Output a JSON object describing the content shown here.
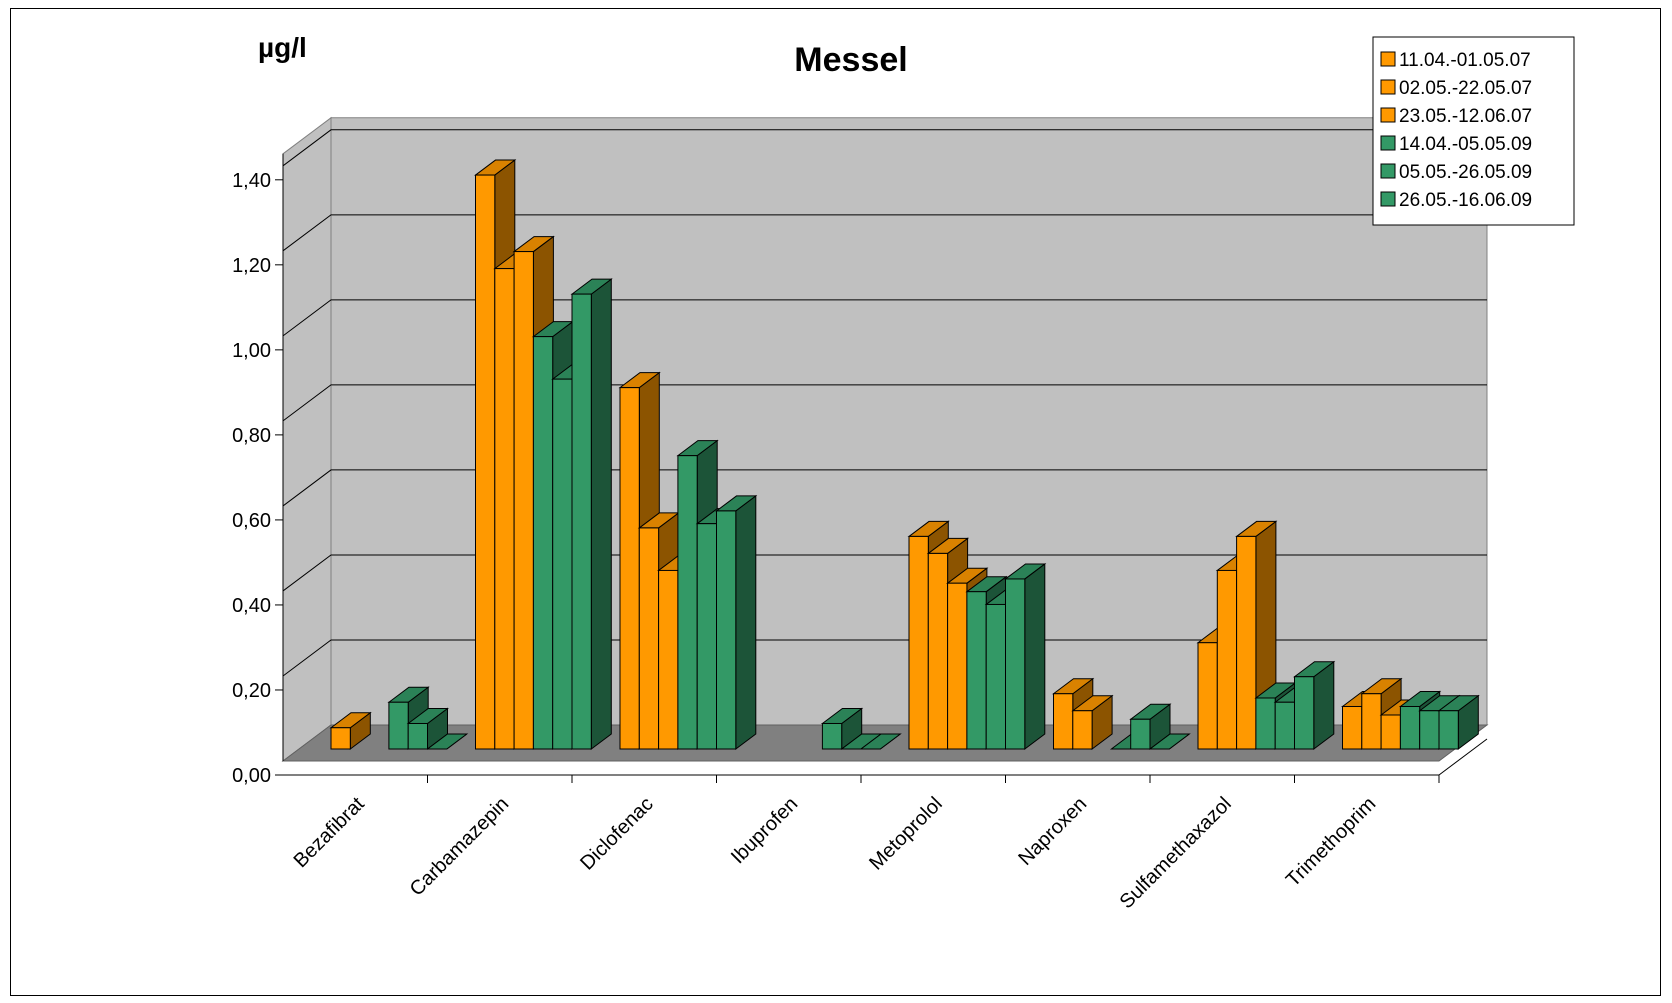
{
  "chart_data": {
    "type": "bar",
    "title": "Messel",
    "ylabel": "µg/l",
    "xlabel": "",
    "ylim": [
      0,
      1.4
    ],
    "yticks": [
      "0,00",
      "0,20",
      "0,40",
      "0,60",
      "0,80",
      "1,00",
      "1,20",
      "1,40"
    ],
    "grid": true,
    "legend_position": "top-right",
    "categories": [
      "Bezafibrat",
      "Carbamazepin",
      "Diclofenac",
      "Ibuprofen",
      "Metoprolol",
      "Naproxen",
      "Sulfamethaxazol",
      "Trimethoprim"
    ],
    "series": [
      {
        "name": "11.04.-01.05.07",
        "color": "#FF9900",
        "values": [
          0.05,
          1.35,
          0.85,
          null,
          0.5,
          0.13,
          0.25,
          0.1
        ]
      },
      {
        "name": "02.05.-22.05.07",
        "color": "#FF9900",
        "values": [
          null,
          1.13,
          0.52,
          null,
          0.46,
          0.09,
          0.42,
          0.13
        ]
      },
      {
        "name": "23.05.-12.06.07",
        "color": "#FF9900",
        "values": [
          null,
          1.17,
          0.42,
          null,
          0.39,
          null,
          0.5,
          0.08
        ]
      },
      {
        "name": "14.04.-05.05.09",
        "color": "#339966",
        "values": [
          0.11,
          0.97,
          0.69,
          0.06,
          0.37,
          0.0,
          0.12,
          0.1
        ]
      },
      {
        "name": "05.05.-26.05.09",
        "color": "#339966",
        "values": [
          0.06,
          0.87,
          0.53,
          0.0,
          0.34,
          0.07,
          0.11,
          0.09
        ]
      },
      {
        "name": "26.05.-16.06.09",
        "color": "#339966",
        "values": [
          0.0,
          1.07,
          0.56,
          0.0,
          0.4,
          0.0,
          0.17,
          0.09
        ]
      }
    ]
  }
}
